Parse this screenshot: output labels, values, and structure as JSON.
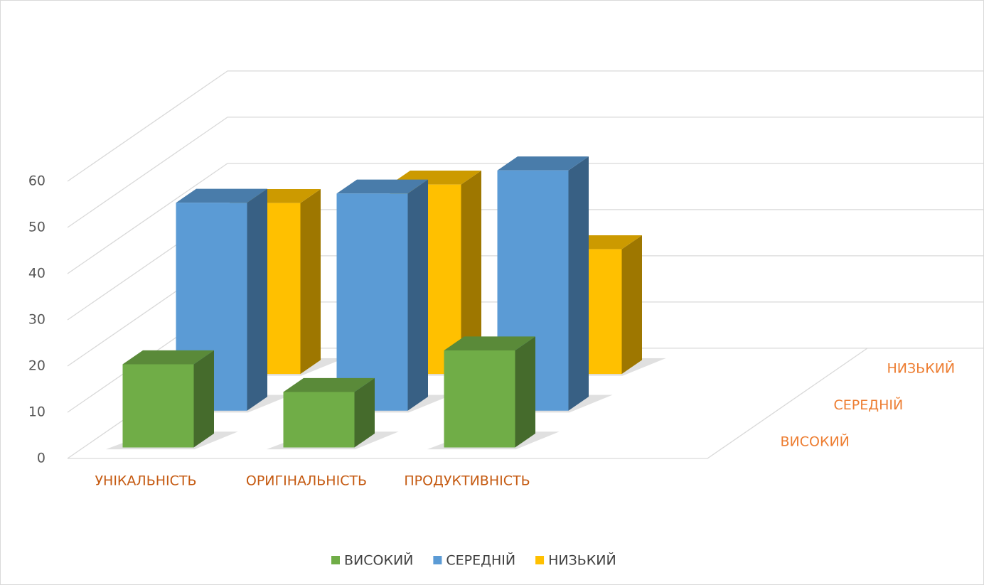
{
  "chart_data": {
    "type": "bar3d",
    "categories": [
      "УНІКАЛЬНІСТЬ",
      "ОРИГІНАЛЬНІСТЬ",
      "ПРОДУКТИВНІСТЬ"
    ],
    "series": [
      {
        "name": "ВИСОКИЙ",
        "color": "#70ad47",
        "values": [
          18,
          12,
          21
        ]
      },
      {
        "name": "СЕРЕДНІЙ",
        "color": "#5b9bd5",
        "values": [
          45,
          47,
          52
        ]
      },
      {
        "name": "НИЗЬКИЙ",
        "color": "#ffc000",
        "values": [
          37,
          41,
          27
        ]
      }
    ],
    "ylim": [
      0,
      60
    ],
    "yticks": [
      0,
      10,
      20,
      30,
      40,
      50,
      60
    ],
    "grid": true,
    "legend": "bottom"
  }
}
